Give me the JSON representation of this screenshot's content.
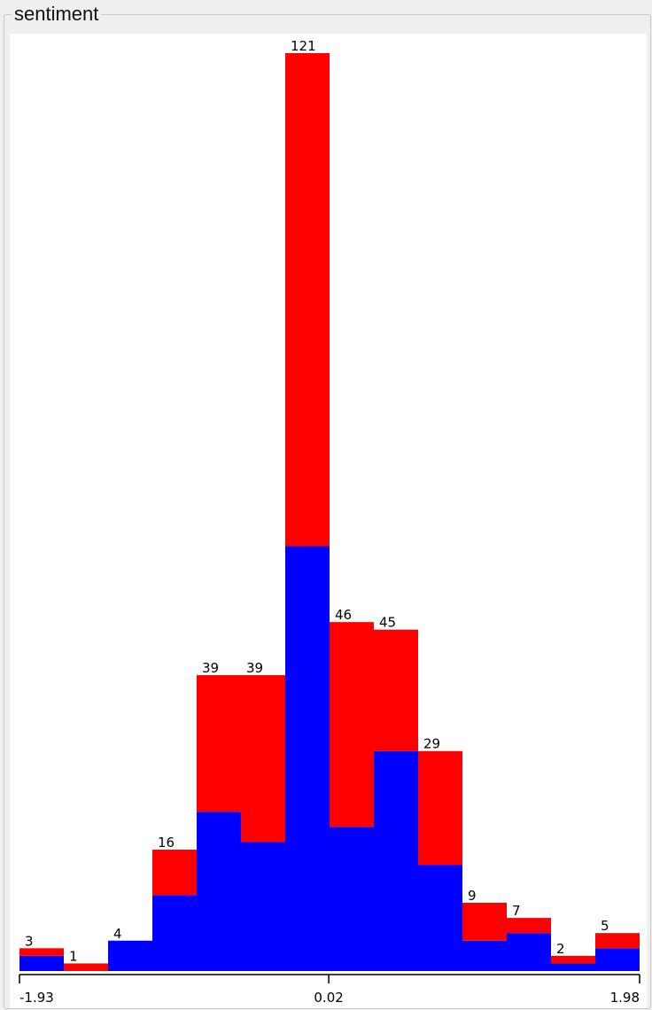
{
  "panel": {
    "title": "sentiment"
  },
  "chart_data": {
    "type": "bar",
    "stacked": true,
    "title": "sentiment",
    "xlabel": "",
    "ylabel": "",
    "x_range": [
      -1.93,
      1.98
    ],
    "ylim": [
      0,
      121
    ],
    "x_ticks": [
      -1.93,
      0.02,
      1.98
    ],
    "bin_count": 14,
    "totals": [
      3,
      1,
      4,
      16,
      39,
      39,
      121,
      46,
      45,
      29,
      9,
      7,
      2,
      5
    ],
    "series": [
      {
        "color": "#0000ff",
        "values": [
          2,
          0,
          4,
          10,
          21,
          17,
          56,
          19,
          29,
          14,
          4,
          5,
          1,
          3
        ]
      },
      {
        "color": "#ff0000",
        "values": [
          1,
          1,
          0,
          6,
          18,
          22,
          65,
          27,
          16,
          15,
          5,
          2,
          1,
          2
        ]
      }
    ],
    "grid": false,
    "legend": "none"
  }
}
